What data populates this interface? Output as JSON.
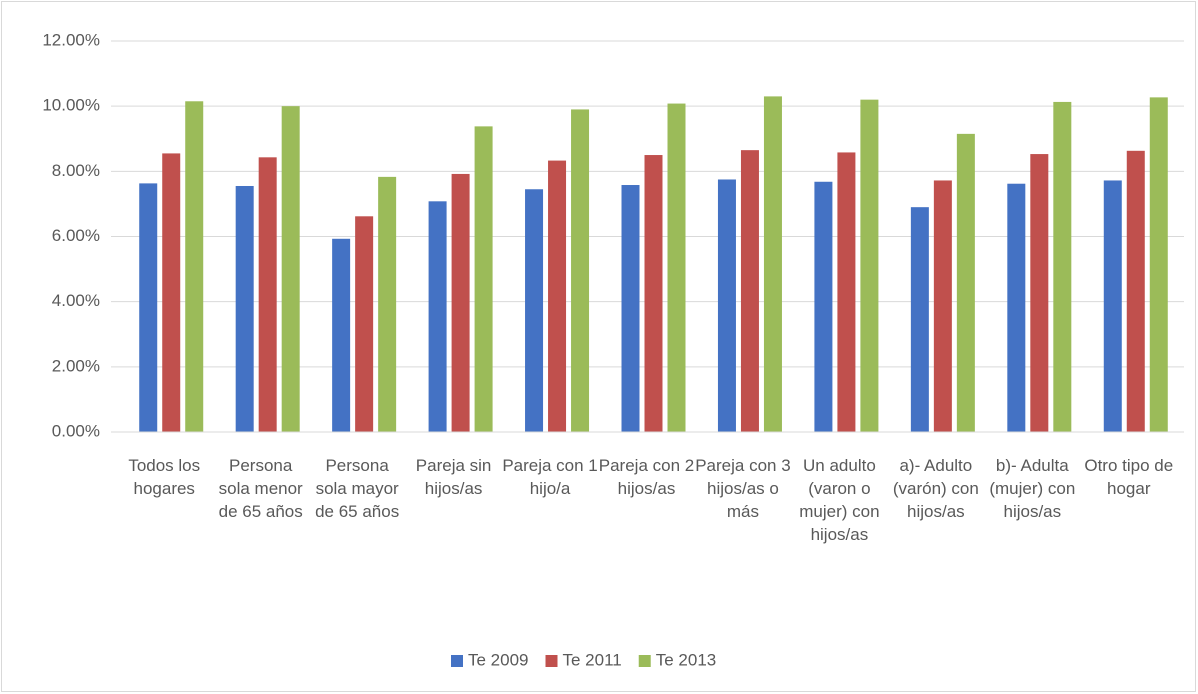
{
  "chart_data": {
    "type": "bar",
    "categories": [
      "Todos los hogares",
      "Persona sola menor de 65 años",
      "Persona sola mayor de 65 años",
      "Pareja sin hijos/as",
      "Pareja con 1 hijo/a",
      "Pareja con 2 hijos/as",
      "Pareja con 3 hijos/as o más",
      "Un adulto (varon o mujer) con hijos/as",
      "a)- Adulto (varón) con hijos/as",
      "b)- Adulta (mujer) con hijos/as",
      "Otro tipo de hogar"
    ],
    "series": [
      {
        "name": "Te 2009",
        "color": "#4472c4",
        "values": [
          7.63,
          7.55,
          5.93,
          7.08,
          7.45,
          7.58,
          7.75,
          7.68,
          6.9,
          7.62,
          7.72
        ]
      },
      {
        "name": "Te 2011",
        "color": "#c0504d",
        "values": [
          8.55,
          8.43,
          6.62,
          7.92,
          8.33,
          8.5,
          8.65,
          8.58,
          7.72,
          8.53,
          8.63
        ]
      },
      {
        "name": "Te 2013",
        "color": "#9bbb59",
        "values": [
          10.15,
          10.0,
          7.83,
          9.38,
          9.9,
          10.08,
          10.3,
          10.2,
          9.15,
          10.13,
          10.27
        ]
      }
    ],
    "ylim": [
      0,
      12
    ],
    "yticks": [
      {
        "value": 0,
        "label": "0.00%"
      },
      {
        "value": 2,
        "label": "2.00%"
      },
      {
        "value": 4,
        "label": "4.00%"
      },
      {
        "value": 6,
        "label": "6.00%"
      },
      {
        "value": 8,
        "label": "8.00%"
      },
      {
        "value": 10,
        "label": "10.00%"
      },
      {
        "value": 12,
        "label": "12.00%"
      }
    ],
    "grid": true,
    "legend": "bottom"
  }
}
